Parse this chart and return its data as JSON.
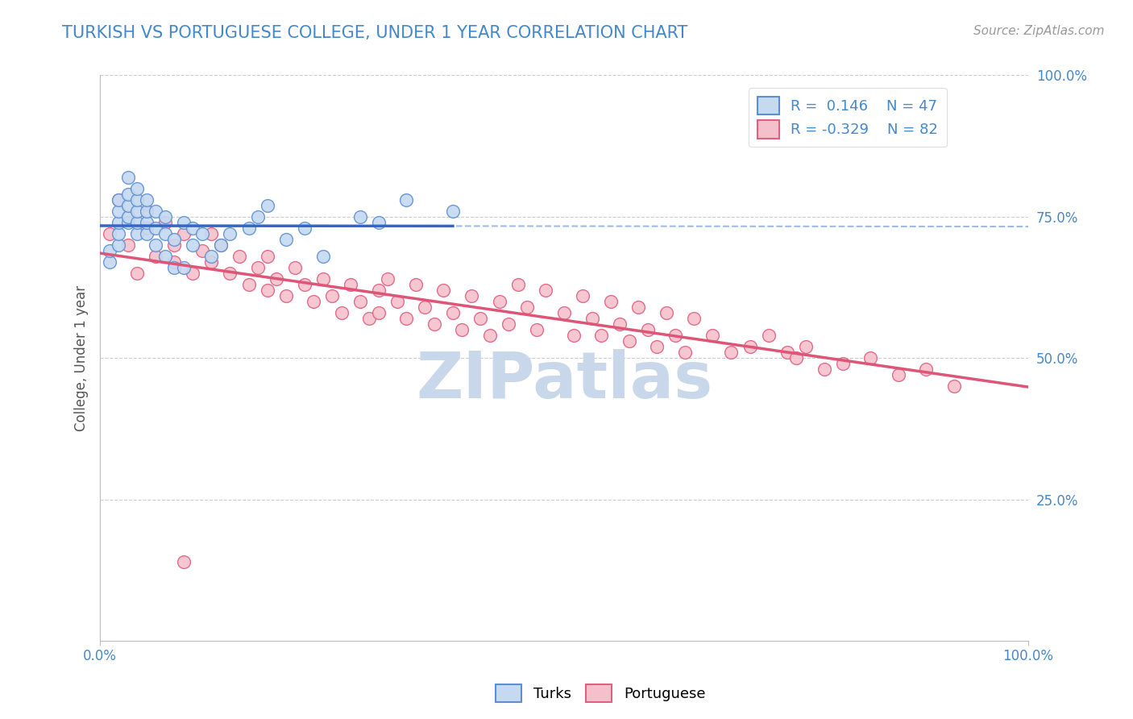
{
  "title": "TURKISH VS PORTUGUESE COLLEGE, UNDER 1 YEAR CORRELATION CHART",
  "source_text": "Source: ZipAtlas.com",
  "ylabel": "College, Under 1 year",
  "xlim": [
    0.0,
    1.0
  ],
  "ylim": [
    0.0,
    1.0
  ],
  "ytick_positions": [
    0.25,
    0.5,
    0.75,
    1.0
  ],
  "ytick_labels": [
    "25.0%",
    "50.0%",
    "75.0%",
    "100.0%"
  ],
  "color_turks_fill": "#c5d9f0",
  "color_turks_edge": "#5b8fd4",
  "color_portuguese_fill": "#f5c0cc",
  "color_portuguese_edge": "#e06080",
  "color_turks_solid": "#3366cc",
  "color_turks_dashed": "#88aadd",
  "color_portuguese_solid": "#dd5577",
  "watermark_text": "ZIPatlas",
  "watermark_color": "#c8d8ea",
  "background_color": "#ffffff",
  "grid_color": "#cccccc",
  "title_color": "#4488cc",
  "axis_tick_color": "#4488cc",
  "axis_label_color": "#555555",
  "legend_text_color": "#4488cc",
  "turks_x": [
    0.01,
    0.01,
    0.02,
    0.02,
    0.02,
    0.02,
    0.02,
    0.03,
    0.03,
    0.03,
    0.03,
    0.03,
    0.04,
    0.04,
    0.04,
    0.04,
    0.04,
    0.05,
    0.05,
    0.05,
    0.05,
    0.06,
    0.06,
    0.06,
    0.07,
    0.07,
    0.07,
    0.08,
    0.08,
    0.09,
    0.09,
    0.1,
    0.1,
    0.11,
    0.12,
    0.13,
    0.14,
    0.16,
    0.17,
    0.18,
    0.2,
    0.22,
    0.24,
    0.28,
    0.3,
    0.33,
    0.38
  ],
  "turks_y": [
    0.67,
    0.69,
    0.7,
    0.72,
    0.74,
    0.76,
    0.78,
    0.74,
    0.75,
    0.77,
    0.79,
    0.82,
    0.72,
    0.74,
    0.76,
    0.78,
    0.8,
    0.72,
    0.74,
    0.76,
    0.78,
    0.7,
    0.73,
    0.76,
    0.68,
    0.72,
    0.75,
    0.66,
    0.71,
    0.66,
    0.74,
    0.7,
    0.73,
    0.72,
    0.68,
    0.7,
    0.72,
    0.73,
    0.75,
    0.77,
    0.71,
    0.73,
    0.68,
    0.75,
    0.74,
    0.78,
    0.76
  ],
  "portuguese_x": [
    0.01,
    0.02,
    0.03,
    0.04,
    0.05,
    0.05,
    0.06,
    0.07,
    0.08,
    0.08,
    0.09,
    0.1,
    0.11,
    0.12,
    0.12,
    0.13,
    0.14,
    0.15,
    0.16,
    0.17,
    0.18,
    0.18,
    0.19,
    0.2,
    0.21,
    0.22,
    0.23,
    0.24,
    0.25,
    0.26,
    0.27,
    0.28,
    0.29,
    0.3,
    0.3,
    0.31,
    0.32,
    0.33,
    0.34,
    0.35,
    0.36,
    0.37,
    0.38,
    0.39,
    0.4,
    0.41,
    0.42,
    0.43,
    0.44,
    0.45,
    0.46,
    0.47,
    0.48,
    0.5,
    0.51,
    0.52,
    0.53,
    0.54,
    0.55,
    0.56,
    0.57,
    0.58,
    0.59,
    0.6,
    0.61,
    0.62,
    0.63,
    0.64,
    0.66,
    0.68,
    0.7,
    0.72,
    0.74,
    0.76,
    0.78,
    0.8,
    0.83,
    0.86,
    0.89,
    0.92,
    0.75,
    0.09
  ],
  "portuguese_y": [
    0.72,
    0.78,
    0.7,
    0.65,
    0.73,
    0.76,
    0.68,
    0.74,
    0.7,
    0.67,
    0.72,
    0.65,
    0.69,
    0.67,
    0.72,
    0.7,
    0.65,
    0.68,
    0.63,
    0.66,
    0.62,
    0.68,
    0.64,
    0.61,
    0.66,
    0.63,
    0.6,
    0.64,
    0.61,
    0.58,
    0.63,
    0.6,
    0.57,
    0.62,
    0.58,
    0.64,
    0.6,
    0.57,
    0.63,
    0.59,
    0.56,
    0.62,
    0.58,
    0.55,
    0.61,
    0.57,
    0.54,
    0.6,
    0.56,
    0.63,
    0.59,
    0.55,
    0.62,
    0.58,
    0.54,
    0.61,
    0.57,
    0.54,
    0.6,
    0.56,
    0.53,
    0.59,
    0.55,
    0.52,
    0.58,
    0.54,
    0.51,
    0.57,
    0.54,
    0.51,
    0.52,
    0.54,
    0.51,
    0.52,
    0.48,
    0.49,
    0.5,
    0.47,
    0.48,
    0.45,
    0.5,
    0.14
  ]
}
